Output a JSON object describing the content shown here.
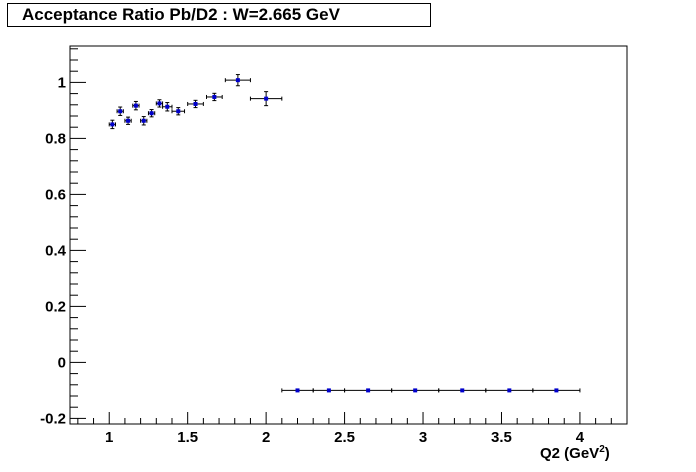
{
  "chart_data": {
    "type": "scatter",
    "title": "Acceptance Ratio Pb/D2 : W=2.665 GeV",
    "xlabel_main": "Q2 (GeV",
    "xlabel_sup": "2",
    "xlabel_close": ")",
    "ylabel": "",
    "xlim": [
      0.75,
      4.3
    ],
    "ylim": [
      -0.22,
      1.13
    ],
    "x_ticks": [
      1,
      1.5,
      2,
      2.5,
      3,
      3.5,
      4
    ],
    "x_tick_labels": [
      "1",
      "1.5",
      "2",
      "2.5",
      "3",
      "3.5",
      "4"
    ],
    "y_ticks": [
      -0.2,
      0,
      0.2,
      0.4,
      0.6,
      0.8,
      1
    ],
    "y_tick_labels": [
      "-0.2",
      "0",
      "0.2",
      "0.4",
      "0.6",
      "0.8",
      "1"
    ],
    "grid": false,
    "marker_color": "#0000cc",
    "series": [
      {
        "points": [
          {
            "x": 1.02,
            "y": 0.85,
            "xerr": 0.02,
            "yerr": 0.015
          },
          {
            "x": 1.07,
            "y": 0.897,
            "xerr": 0.02,
            "yerr": 0.015
          },
          {
            "x": 1.12,
            "y": 0.863,
            "xerr": 0.02,
            "yerr": 0.013
          },
          {
            "x": 1.17,
            "y": 0.917,
            "xerr": 0.02,
            "yerr": 0.015
          },
          {
            "x": 1.22,
            "y": 0.863,
            "xerr": 0.02,
            "yerr": 0.015
          },
          {
            "x": 1.27,
            "y": 0.89,
            "xerr": 0.02,
            "yerr": 0.013
          },
          {
            "x": 1.32,
            "y": 0.925,
            "xerr": 0.02,
            "yerr": 0.013
          },
          {
            "x": 1.37,
            "y": 0.913,
            "xerr": 0.03,
            "yerr": 0.015
          },
          {
            "x": 1.44,
            "y": 0.897,
            "xerr": 0.04,
            "yerr": 0.013
          },
          {
            "x": 1.55,
            "y": 0.923,
            "xerr": 0.05,
            "yerr": 0.013
          },
          {
            "x": 1.67,
            "y": 0.948,
            "xerr": 0.05,
            "yerr": 0.013
          },
          {
            "x": 1.82,
            "y": 1.008,
            "xerr": 0.08,
            "yerr": 0.02
          },
          {
            "x": 2.0,
            "y": 0.942,
            "xerr": 0.1,
            "yerr": 0.025
          },
          {
            "x": 2.2,
            "y": -0.1,
            "xerr": 0.1,
            "yerr": 0
          },
          {
            "x": 2.4,
            "y": -0.1,
            "xerr": 0.1,
            "yerr": 0
          },
          {
            "x": 2.65,
            "y": -0.1,
            "xerr": 0.15,
            "yerr": 0
          },
          {
            "x": 2.95,
            "y": -0.1,
            "xerr": 0.15,
            "yerr": 0
          },
          {
            "x": 3.25,
            "y": -0.1,
            "xerr": 0.15,
            "yerr": 0
          },
          {
            "x": 3.55,
            "y": -0.1,
            "xerr": 0.15,
            "yerr": 0
          },
          {
            "x": 3.85,
            "y": -0.1,
            "xerr": 0.15,
            "yerr": 0
          }
        ]
      }
    ]
  }
}
